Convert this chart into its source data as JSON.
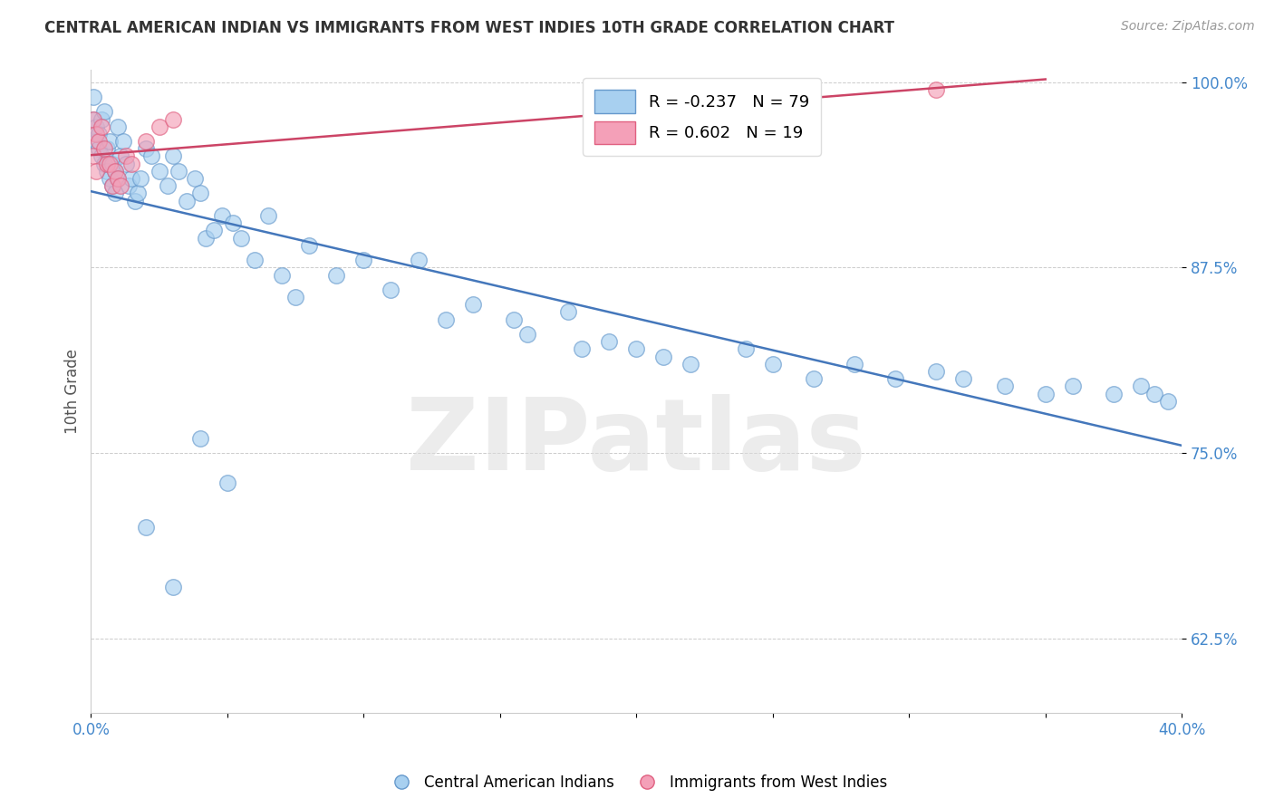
{
  "title": "CENTRAL AMERICAN INDIAN VS IMMIGRANTS FROM WEST INDIES 10TH GRADE CORRELATION CHART",
  "source": "Source: ZipAtlas.com",
  "ylabel": "10th Grade",
  "xlim": [
    0.0,
    0.4
  ],
  "ylim": [
    0.575,
    1.008
  ],
  "yticks": [
    0.625,
    0.75,
    0.875,
    1.0
  ],
  "blue_R": -0.237,
  "blue_N": 79,
  "pink_R": 0.602,
  "pink_N": 19,
  "blue_color": "#A8D0F0",
  "pink_color": "#F4A0B8",
  "blue_edge_color": "#6699CC",
  "pink_edge_color": "#E06080",
  "blue_line_color": "#4477BB",
  "pink_line_color": "#CC4466",
  "legend_label_blue": "Central American Indians",
  "legend_label_pink": "Immigrants from West Indies",
  "watermark": "ZIPatlas",
  "blue_x": [
    0.001,
    0.001,
    0.002,
    0.002,
    0.003,
    0.003,
    0.004,
    0.004,
    0.005,
    0.005,
    0.006,
    0.006,
    0.007,
    0.007,
    0.008,
    0.008,
    0.009,
    0.009,
    0.01,
    0.01,
    0.011,
    0.012,
    0.013,
    0.014,
    0.015,
    0.016,
    0.017,
    0.018,
    0.02,
    0.022,
    0.025,
    0.028,
    0.03,
    0.032,
    0.035,
    0.038,
    0.04,
    0.042,
    0.045,
    0.048,
    0.052,
    0.055,
    0.06,
    0.065,
    0.07,
    0.075,
    0.08,
    0.09,
    0.1,
    0.11,
    0.12,
    0.13,
    0.14,
    0.155,
    0.16,
    0.175,
    0.18,
    0.19,
    0.2,
    0.21,
    0.22,
    0.24,
    0.25,
    0.265,
    0.28,
    0.295,
    0.31,
    0.32,
    0.335,
    0.35,
    0.36,
    0.375,
    0.385,
    0.39,
    0.395,
    0.02,
    0.03,
    0.04,
    0.05
  ],
  "blue_y": [
    0.99,
    0.975,
    0.97,
    0.96,
    0.965,
    0.955,
    0.975,
    0.95,
    0.98,
    0.945,
    0.94,
    0.955,
    0.935,
    0.96,
    0.93,
    0.945,
    0.925,
    0.94,
    0.97,
    0.935,
    0.95,
    0.96,
    0.945,
    0.93,
    0.935,
    0.92,
    0.925,
    0.935,
    0.955,
    0.95,
    0.94,
    0.93,
    0.95,
    0.94,
    0.92,
    0.935,
    0.925,
    0.895,
    0.9,
    0.91,
    0.905,
    0.895,
    0.88,
    0.91,
    0.87,
    0.855,
    0.89,
    0.87,
    0.88,
    0.86,
    0.88,
    0.84,
    0.85,
    0.84,
    0.83,
    0.845,
    0.82,
    0.825,
    0.82,
    0.815,
    0.81,
    0.82,
    0.81,
    0.8,
    0.81,
    0.8,
    0.805,
    0.8,
    0.795,
    0.79,
    0.795,
    0.79,
    0.795,
    0.79,
    0.785,
    0.7,
    0.66,
    0.76,
    0.73
  ],
  "pink_x": [
    0.001,
    0.001,
    0.002,
    0.002,
    0.003,
    0.004,
    0.005,
    0.006,
    0.007,
    0.008,
    0.009,
    0.01,
    0.011,
    0.013,
    0.015,
    0.02,
    0.025,
    0.03,
    0.31
  ],
  "pink_y": [
    0.975,
    0.95,
    0.965,
    0.94,
    0.96,
    0.97,
    0.955,
    0.945,
    0.945,
    0.93,
    0.94,
    0.935,
    0.93,
    0.95,
    0.945,
    0.96,
    0.97,
    0.975,
    0.995
  ]
}
